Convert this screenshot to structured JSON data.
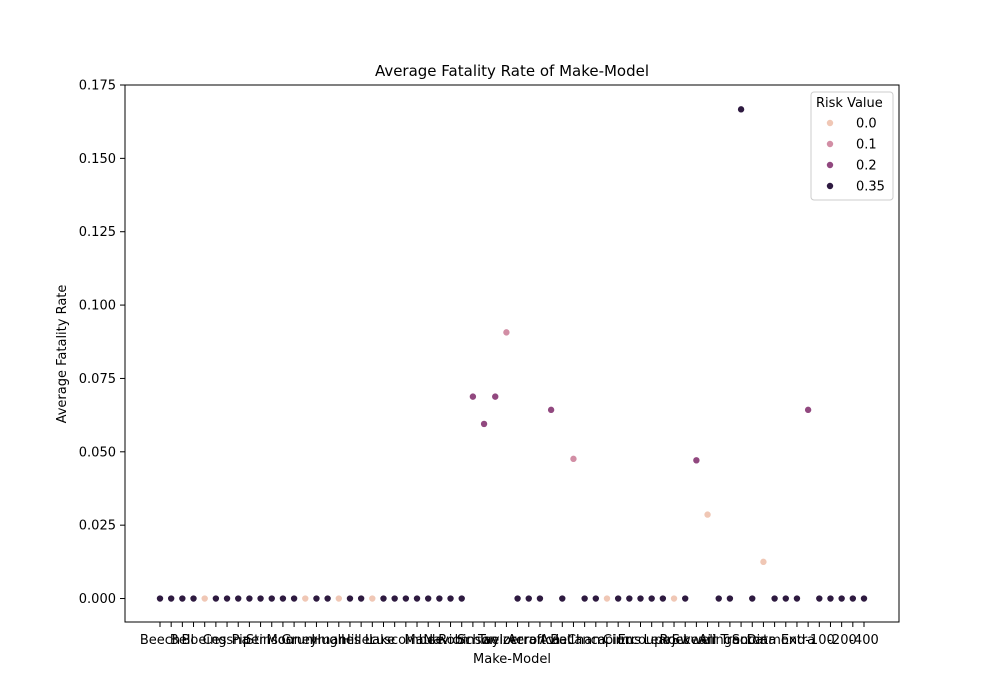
{
  "chart_data": {
    "type": "scatter",
    "title": "Average Fatality Rate of Make-Model",
    "xlabel": "Make-Model",
    "ylabel": "Average Fatality Rate",
    "ylim": [
      -0.008,
      0.175
    ],
    "yticks": [
      "0.000",
      "0.025",
      "0.050",
      "0.075",
      "0.100",
      "0.125",
      "0.150",
      "0.175"
    ],
    "ytick_values": [
      0,
      0.025,
      0.05,
      0.075,
      0.1,
      0.125,
      0.15,
      0.175
    ],
    "xtick_labels_visible": [
      "Beech",
      "Bell",
      "Boeing",
      "Cessna",
      "Piper",
      "Stinson",
      "Mooney",
      "Grumman",
      "Hughes",
      "Hiller",
      "Lake",
      "Luscombe",
      "Maule",
      "Navion",
      "Robinson",
      "Schweizer",
      "Taylorcraft",
      "Aeronca",
      "Aviat",
      "Bellanca",
      "Champion",
      "Cirrus",
      "Ercoupe",
      "Learjet",
      "Rockwell",
      "Swearingen",
      "Air Tractor",
      "Socata",
      "Diamond",
      "Extra",
      "-100",
      "-200",
      "-400"
    ],
    "hue_title": "Risk Value",
    "legend_position": "upper right",
    "legend": [
      {
        "label": "0.0",
        "color": "#f0c7b5"
      },
      {
        "label": "0.1",
        "color": "#d28ea5"
      },
      {
        "label": "0.2",
        "color": "#91487f"
      },
      {
        "label": "0.35",
        "color": "#2e1a40"
      }
    ],
    "points": [
      {
        "x": 0,
        "y": 0.0,
        "risk": "0.35"
      },
      {
        "x": 1,
        "y": 0.0,
        "risk": "0.35"
      },
      {
        "x": 2,
        "y": 0.0,
        "risk": "0.35"
      },
      {
        "x": 3,
        "y": 0.0,
        "risk": "0.35"
      },
      {
        "x": 4,
        "y": 0.0,
        "risk": "0.0"
      },
      {
        "x": 5,
        "y": 0.0,
        "risk": "0.35"
      },
      {
        "x": 6,
        "y": 0.0,
        "risk": "0.35"
      },
      {
        "x": 7,
        "y": 0.0,
        "risk": "0.35"
      },
      {
        "x": 8,
        "y": 0.0,
        "risk": "0.35"
      },
      {
        "x": 9,
        "y": 0.0,
        "risk": "0.35"
      },
      {
        "x": 10,
        "y": 0.0,
        "risk": "0.35"
      },
      {
        "x": 11,
        "y": 0.0,
        "risk": "0.35"
      },
      {
        "x": 12,
        "y": 0.0,
        "risk": "0.35"
      },
      {
        "x": 13,
        "y": 0.0,
        "risk": "0.0"
      },
      {
        "x": 14,
        "y": 0.0,
        "risk": "0.35"
      },
      {
        "x": 15,
        "y": 0.0,
        "risk": "0.35"
      },
      {
        "x": 16,
        "y": 0.0,
        "risk": "0.0"
      },
      {
        "x": 17,
        "y": 0.0,
        "risk": "0.35"
      },
      {
        "x": 18,
        "y": 0.0,
        "risk": "0.35"
      },
      {
        "x": 19,
        "y": 0.0,
        "risk": "0.0"
      },
      {
        "x": 20,
        "y": 0.0,
        "risk": "0.35"
      },
      {
        "x": 21,
        "y": 0.0,
        "risk": "0.35"
      },
      {
        "x": 22,
        "y": 0.0,
        "risk": "0.35"
      },
      {
        "x": 23,
        "y": 0.0,
        "risk": "0.35"
      },
      {
        "x": 24,
        "y": 0.0,
        "risk": "0.35"
      },
      {
        "x": 25,
        "y": 0.0,
        "risk": "0.35"
      },
      {
        "x": 26,
        "y": 0.0,
        "risk": "0.35"
      },
      {
        "x": 27,
        "y": 0.0,
        "risk": "0.35"
      },
      {
        "x": 28,
        "y": 0.0688,
        "risk": "0.2"
      },
      {
        "x": 29,
        "y": 0.0595,
        "risk": "0.2"
      },
      {
        "x": 30,
        "y": 0.0688,
        "risk": "0.2"
      },
      {
        "x": 31,
        "y": 0.0907,
        "risk": "0.1"
      },
      {
        "x": 32,
        "y": 0.0,
        "risk": "0.35"
      },
      {
        "x": 33,
        "y": 0.0,
        "risk": "0.35"
      },
      {
        "x": 34,
        "y": 0.0,
        "risk": "0.35"
      },
      {
        "x": 35,
        "y": 0.0643,
        "risk": "0.2"
      },
      {
        "x": 36,
        "y": 0.0,
        "risk": "0.35"
      },
      {
        "x": 37,
        "y": 0.0476,
        "risk": "0.1"
      },
      {
        "x": 38,
        "y": 0.0,
        "risk": "0.35"
      },
      {
        "x": 39,
        "y": 0.0,
        "risk": "0.35"
      },
      {
        "x": 40,
        "y": 0.0,
        "risk": "0.0"
      },
      {
        "x": 41,
        "y": 0.0,
        "risk": "0.35"
      },
      {
        "x": 42,
        "y": 0.0,
        "risk": "0.35"
      },
      {
        "x": 43,
        "y": 0.0,
        "risk": "0.35"
      },
      {
        "x": 44,
        "y": 0.0,
        "risk": "0.35"
      },
      {
        "x": 45,
        "y": 0.0,
        "risk": "0.35"
      },
      {
        "x": 46,
        "y": 0.0,
        "risk": "0.0"
      },
      {
        "x": 47,
        "y": 0.0,
        "risk": "0.35"
      },
      {
        "x": 48,
        "y": 0.0471,
        "risk": "0.2"
      },
      {
        "x": 49,
        "y": 0.0286,
        "risk": "0.0"
      },
      {
        "x": 50,
        "y": 0.0,
        "risk": "0.35"
      },
      {
        "x": 51,
        "y": 0.0,
        "risk": "0.35"
      },
      {
        "x": 52,
        "y": 0.1667,
        "risk": "0.35"
      },
      {
        "x": 53,
        "y": 0.0,
        "risk": "0.35"
      },
      {
        "x": 54,
        "y": 0.0125,
        "risk": "0.0"
      },
      {
        "x": 55,
        "y": 0.0,
        "risk": "0.35"
      },
      {
        "x": 56,
        "y": 0.0,
        "risk": "0.35"
      },
      {
        "x": 57,
        "y": 0.0,
        "risk": "0.35"
      },
      {
        "x": 58,
        "y": 0.0643,
        "risk": "0.2"
      },
      {
        "x": 59,
        "y": 0.0,
        "risk": "0.35"
      },
      {
        "x": 60,
        "y": 0.0,
        "risk": "0.35"
      },
      {
        "x": 61,
        "y": 0.0,
        "risk": "0.35"
      },
      {
        "x": 62,
        "y": 0.0,
        "risk": "0.35"
      },
      {
        "x": 63,
        "y": 0.0,
        "risk": "0.35"
      }
    ]
  }
}
